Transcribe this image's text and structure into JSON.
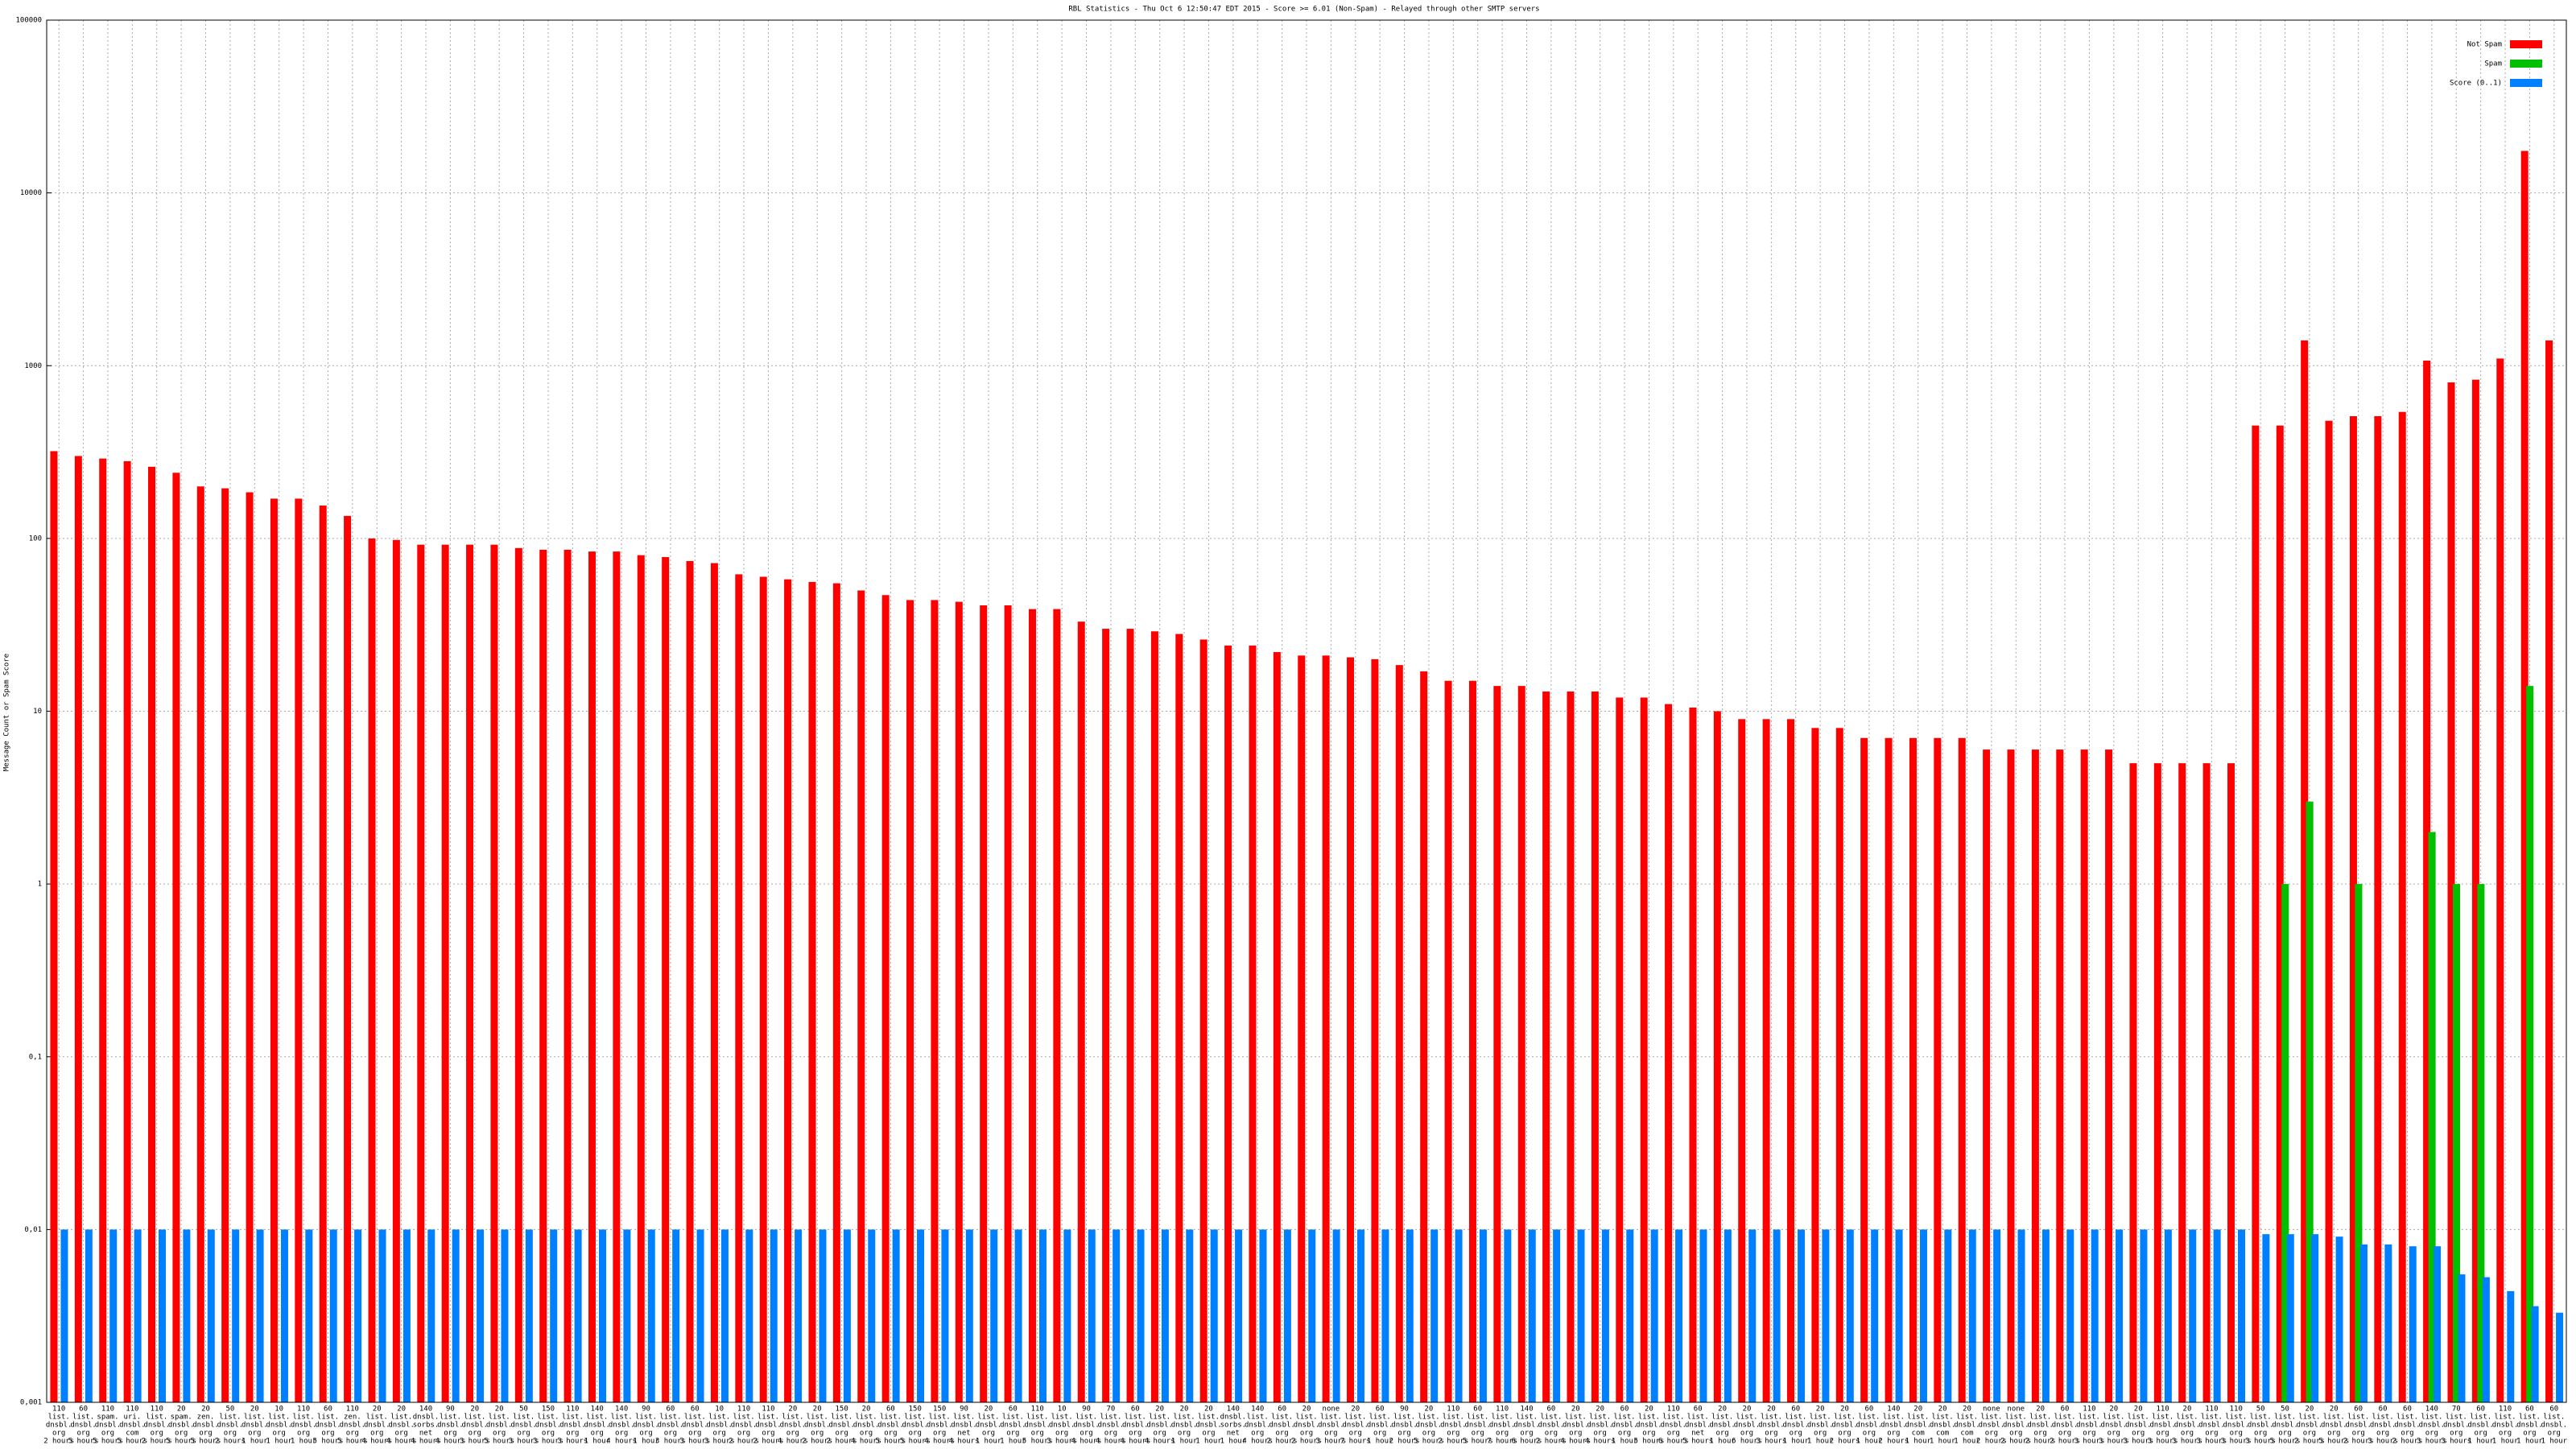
{
  "chart_data": {
    "type": "bar",
    "title": "RBL Statistics - Thu Oct  6 12:50:47 EDT 2015 - Score >= 6.01 (Non-Spam) - Relayed through other SMTP servers",
    "y_label": "Message Count or Spam Score",
    "log_scale": true,
    "grid": true,
    "legend": "top-right",
    "ylim": [
      0.001,
      100000
    ],
    "yticks": [
      {
        "value": 0.001,
        "label": "0,001"
      },
      {
        "value": 0.01,
        "label": "0,01"
      },
      {
        "value": 0.1,
        "label": "0,1"
      },
      1,
      10,
      100,
      1000,
      10000,
      100000
    ],
    "categories": [
      [
        "110",
        "list.",
        "dnsbl.",
        "org",
        "2 hours"
      ],
      [
        "60",
        "list.",
        "dnsbl.",
        "org",
        "5 hours"
      ],
      [
        "110",
        "spam.",
        "dnsbl.",
        "org",
        "5 hours"
      ],
      [
        "110",
        "uri.",
        "dnsbl.",
        "com",
        "5 hours"
      ],
      [
        "110",
        "list.",
        "dnsbl.",
        "org",
        "2 hours"
      ],
      [
        "20",
        "spam.",
        "dnsbl.",
        "org",
        "5 hours"
      ],
      [
        "20",
        "zen.",
        "dnsbl.",
        "org",
        "5 hours"
      ],
      [
        "50",
        "list.",
        "dnsbl.",
        "org",
        "2 hours"
      ],
      [
        "20",
        "list.",
        "dnsbl.",
        "org",
        "1 hour"
      ],
      [
        "10",
        "list.",
        "dnsbl.",
        "org",
        "1 hour"
      ],
      [
        "110",
        "list.",
        "dnsbl.",
        "org",
        "1 hour"
      ],
      [
        "60",
        "list.",
        "dnsbl.",
        "org",
        "5 hours"
      ],
      [
        "110",
        "zen.",
        "dnsbl.",
        "org",
        "5 hours"
      ],
      [
        "20",
        "list.",
        "dnsbl.",
        "org",
        "4 hours"
      ],
      [
        "20",
        "list.",
        "dnsbl.",
        "org",
        "4 hours"
      ],
      [
        "140",
        "dnsbl.",
        "sorbs.",
        "net",
        "4 hours"
      ],
      [
        "90",
        "list.",
        "dnsbl.",
        "org",
        "4 hours"
      ],
      [
        "20",
        "list.",
        "dnsbl.",
        "org",
        "3 hours"
      ],
      [
        "20",
        "list.",
        "dnsbl.",
        "org",
        "5 hours"
      ],
      [
        "50",
        "list.",
        "dnsbl.",
        "org",
        "3 hours"
      ],
      [
        "150",
        "list.",
        "dnsbl.",
        "org",
        "3 hours"
      ],
      [
        "110",
        "list.",
        "dnsbl.",
        "org",
        "3 hours"
      ],
      [
        "140",
        "list.",
        "dnsbl.",
        "org",
        "1 hour"
      ],
      [
        "140",
        "list.",
        "dnsbl.",
        "org",
        "4 hours"
      ],
      [
        "90",
        "list.",
        "dnsbl.",
        "org",
        "1 hour"
      ],
      [
        "60",
        "list.",
        "dnsbl.",
        "org",
        "3 hours"
      ],
      [
        "60",
        "list.",
        "dnsbl.",
        "org",
        "3 hours"
      ],
      [
        "10",
        "list.",
        "dnsbl.",
        "org",
        "3 hours"
      ],
      [
        "110",
        "list.",
        "dnsbl.",
        "org",
        "2 hours"
      ],
      [
        "110",
        "list.",
        "dnsbl.",
        "org",
        "2 hours"
      ],
      [
        "20",
        "list.",
        "dnsbl.",
        "org",
        "4 hours"
      ],
      [
        "20",
        "list.",
        "dnsbl.",
        "org",
        "2 hours"
      ],
      [
        "150",
        "list.",
        "dnsbl.",
        "org",
        "2 hours"
      ],
      [
        "20",
        "list.",
        "dnsbl.",
        "org",
        "4 hours"
      ],
      [
        "60",
        "list.",
        "dnsbl.",
        "org",
        "5 hours"
      ],
      [
        "150",
        "list.",
        "dnsbl.",
        "org",
        "5 hours"
      ],
      [
        "150",
        "list.",
        "dnsbl.",
        "org",
        "4 hours"
      ],
      [
        "90",
        "list.",
        "dnsbl.",
        "net",
        "4 hours"
      ],
      [
        "20",
        "list.",
        "dnsbl.",
        "org",
        "1 hour"
      ],
      [
        "60",
        "list.",
        "dnsbl.",
        "org",
        "1 hour"
      ],
      [
        "110",
        "list.",
        "dnsbl.",
        "org",
        "5 hours"
      ],
      [
        "10",
        "list.",
        "dnsbl.",
        "org",
        "3 hours"
      ],
      [
        "90",
        "list.",
        "dnsbl.",
        "org",
        "4 hours"
      ],
      [
        "70",
        "list.",
        "dnsbl.",
        "org",
        "4 hours"
      ],
      [
        "60",
        "list.",
        "dnsbl.",
        "org",
        "4 hours"
      ],
      [
        "20",
        "list.",
        "dnsbl.",
        "org",
        "4 hours"
      ],
      [
        "20",
        "list.",
        "dnsbl.",
        "org",
        "1 hour"
      ],
      [
        "20",
        "list.",
        "dnsbl.",
        "org",
        "1 hour"
      ],
      [
        "140",
        "dnsbl.",
        "sorbs.",
        "net",
        "1 hour"
      ],
      [
        "140",
        "list.",
        "dnsbl.",
        "org",
        "4 hours"
      ],
      [
        "60",
        "list.",
        "dnsbl.",
        "org",
        "2 hours"
      ],
      [
        "20",
        "list.",
        "dnsbl.",
        "org",
        "2 hours"
      ],
      [
        "none",
        "list.",
        "dnsbl.",
        "org",
        "3 hours"
      ],
      [
        "20",
        "list.",
        "dnsbl.",
        "org",
        "7 hours"
      ],
      [
        "60",
        "list.",
        "dnsbl.",
        "org",
        "1 hour"
      ],
      [
        "90",
        "list.",
        "dnsbl.",
        "org",
        "2 hours"
      ],
      [
        "20",
        "list.",
        "dnsbl.",
        "org",
        "5 hours"
      ],
      [
        "110",
        "list.",
        "dnsbl.",
        "org",
        "2 hours"
      ],
      [
        "60",
        "list.",
        "dnsbl.",
        "org",
        "5 hours"
      ],
      [
        "110",
        "list.",
        "dnsbl.",
        "org",
        "7 hours"
      ],
      [
        "140",
        "list.",
        "dnsbl.",
        "org",
        "6 hours"
      ],
      [
        "60",
        "list.",
        "dnsbl.",
        "org",
        "2 hours"
      ],
      [
        "20",
        "list.",
        "dnsbl.",
        "org",
        "4 hours"
      ],
      [
        "20",
        "list.",
        "dnsbl.",
        "org",
        "4 hours"
      ],
      [
        "60",
        "list.",
        "dnsbl.",
        "org",
        "1 hour"
      ],
      [
        "20",
        "list.",
        "dnsbl.",
        "org",
        "5 hours"
      ],
      [
        "110",
        "list.",
        "dnsbl.",
        "org",
        "6 hours"
      ],
      [
        "60",
        "list.",
        "dnsbl.",
        "net",
        "5 hours"
      ],
      [
        "20",
        "list.",
        "dnsbl.",
        "org",
        "1 hour"
      ],
      [
        "20",
        "list.",
        "dnsbl.",
        "org",
        "6 hours"
      ],
      [
        "20",
        "list.",
        "dnsbl.",
        "org",
        "3 hours"
      ],
      [
        "60",
        "list.",
        "dnsbl.",
        "org",
        "1 hour"
      ],
      [
        "20",
        "list.",
        "dnsbl.",
        "org",
        "1 hour"
      ],
      [
        "20",
        "list.",
        "dnsbl.",
        "org",
        "2 hours"
      ],
      [
        "60",
        "list.",
        "dnsbl.",
        "org",
        "1 hour"
      ],
      [
        "140",
        "list.",
        "dnsbl.",
        "org",
        "2 hours"
      ],
      [
        "20",
        "list.",
        "dnsbl.",
        "com",
        "1 hour"
      ],
      [
        "20",
        "list.",
        "dnsbl.",
        "com",
        "1 hour"
      ],
      [
        "20",
        "list.",
        "dnsbl.",
        "com",
        "1 hour"
      ],
      [
        "none",
        "list.",
        "dnsbl.",
        "org",
        "2 hours"
      ],
      [
        "none",
        "list.",
        "dnsbl.",
        "org",
        "2 hours"
      ],
      [
        "20",
        "list.",
        "dnsbl.",
        "org",
        "2 hours"
      ],
      [
        "60",
        "list.",
        "dnsbl.",
        "org",
        "2 hours"
      ],
      [
        "110",
        "list.",
        "dnsbl.",
        "org",
        "3 hours"
      ],
      [
        "20",
        "list.",
        "dnsbl.",
        "org",
        "3 hours"
      ],
      [
        "20",
        "list.",
        "dnsbl.",
        "org",
        "3 hours"
      ],
      [
        "110",
        "list.",
        "dnsbl.",
        "org",
        "3 hours"
      ],
      [
        "20",
        "list.",
        "dnsbl.",
        "org",
        "3 hours"
      ],
      [
        "110",
        "list.",
        "dnsbl.",
        "org",
        "3 hours"
      ],
      [
        "110",
        "list.",
        "dnsbl.",
        "org",
        "3 hours"
      ],
      [
        "50",
        "list.",
        "dnsbl.",
        "org",
        "3 hours"
      ],
      [
        "50",
        "list.",
        "dnsbl.",
        "org",
        "5 hours"
      ],
      [
        "20",
        "list.",
        "dnsbl.",
        "org",
        "2 hours"
      ],
      [
        "20",
        "list.",
        "dnsbl.",
        "org",
        "5 hours"
      ],
      [
        "60",
        "list.",
        "dnsbl.",
        "org",
        "2 hours"
      ],
      [
        "60",
        "list.",
        "dnsbl.",
        "org",
        "3 hours"
      ],
      [
        "60",
        "list.",
        "dnsbl.",
        "org",
        "2 hours"
      ],
      [
        "140",
        "list.",
        "dnsbl.",
        "org",
        "3 hours"
      ],
      [
        "70",
        "list.",
        "dnsbl.",
        "org",
        "3 hours"
      ],
      [
        "60",
        "list.",
        "dnsbl.",
        "org",
        "1 hour"
      ],
      [
        "110",
        "list.",
        "dnsbl.",
        "org",
        "1 hour"
      ],
      [
        "60",
        "list.",
        "dnsbl.",
        "org",
        "1 hour"
      ],
      [
        "60",
        "list.",
        "dnsbl.",
        "org",
        "1 hour"
      ]
    ],
    "series": [
      {
        "name": "Not Spam",
        "color": "#ff0000",
        "values": [
          320,
          300,
          290,
          280,
          260,
          240,
          200,
          195,
          185,
          170,
          170,
          155,
          135,
          100,
          98,
          92,
          92,
          92,
          92,
          88,
          86,
          86,
          84,
          84,
          80,
          78,
          74,
          72,
          62,
          60,
          58,
          56,
          55,
          50,
          47,
          44,
          44,
          43,
          41,
          41,
          39,
          39,
          33,
          30,
          30,
          29,
          28,
          26,
          24,
          24,
          22,
          21,
          21,
          20.5,
          20,
          18.5,
          17,
          15,
          15,
          14,
          14,
          13,
          13,
          13,
          12,
          12,
          11,
          10.5,
          10,
          9,
          9,
          9,
          8,
          8,
          7,
          7,
          7,
          7,
          7,
          6,
          6,
          6,
          6,
          6,
          6,
          5,
          5,
          5,
          5,
          5,
          450,
          450,
          1400,
          480,
          510,
          510,
          540,
          1070,
          800,
          830,
          1100,
          17500,
          1400
        ]
      },
      {
        "name": "Spam",
        "color": "#00c000",
        "values": [
          null,
          null,
          null,
          null,
          null,
          null,
          null,
          null,
          null,
          null,
          null,
          null,
          null,
          null,
          null,
          null,
          null,
          null,
          null,
          null,
          null,
          null,
          null,
          null,
          null,
          null,
          null,
          null,
          null,
          null,
          null,
          null,
          null,
          null,
          null,
          null,
          null,
          null,
          null,
          null,
          null,
          null,
          null,
          null,
          null,
          null,
          null,
          null,
          null,
          null,
          null,
          null,
          null,
          null,
          null,
          null,
          null,
          null,
          null,
          null,
          null,
          null,
          null,
          null,
          null,
          null,
          null,
          null,
          null,
          null,
          null,
          null,
          null,
          null,
          null,
          null,
          null,
          null,
          null,
          null,
          null,
          null,
          null,
          null,
          null,
          null,
          null,
          null,
          null,
          null,
          null,
          1,
          3,
          null,
          1,
          null,
          null,
          2,
          1,
          1,
          null,
          14,
          null
        ]
      },
      {
        "name": "Score (0..1)",
        "color": "#0080ff",
        "values": [
          0.01,
          0.01,
          0.01,
          0.01,
          0.01,
          0.01,
          0.01,
          0.01,
          0.01,
          0.01,
          0.01,
          0.01,
          0.01,
          0.01,
          0.01,
          0.01,
          0.01,
          0.01,
          0.01,
          0.01,
          0.01,
          0.01,
          0.01,
          0.01,
          0.01,
          0.01,
          0.01,
          0.01,
          0.01,
          0.01,
          0.01,
          0.01,
          0.01,
          0.01,
          0.01,
          0.01,
          0.01,
          0.01,
          0.01,
          0.01,
          0.01,
          0.01,
          0.01,
          0.01,
          0.01,
          0.01,
          0.01,
          0.01,
          0.01,
          0.01,
          0.01,
          0.01,
          0.01,
          0.01,
          0.01,
          0.01,
          0.01,
          0.01,
          0.01,
          0.01,
          0.01,
          0.01,
          0.01,
          0.01,
          0.01,
          0.01,
          0.01,
          0.01,
          0.01,
          0.01,
          0.01,
          0.01,
          0.01,
          0.01,
          0.01,
          0.01,
          0.01,
          0.01,
          0.01,
          0.01,
          0.01,
          0.01,
          0.01,
          0.01,
          0.01,
          0.01,
          0.01,
          0.01,
          0.01,
          0.01,
          0.0094,
          0.0094,
          0.0094,
          0.0091,
          0.0082,
          0.0082,
          0.008,
          0.008,
          0.0055,
          0.0053,
          0.0044,
          0.0036,
          0.0033
        ]
      }
    ]
  }
}
